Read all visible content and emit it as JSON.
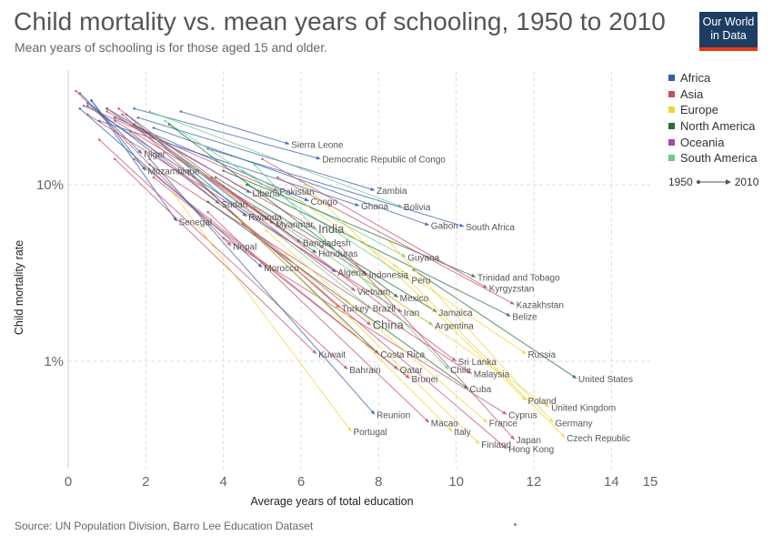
{
  "header": {
    "title": "Child mortality vs. mean years of schooling, 1950 to 2010",
    "subtitle": "Mean years of schooling is for those aged 15 and older."
  },
  "logo": {
    "line1": "Our World",
    "line2": "in Data"
  },
  "footer": {
    "source": "Source: UN Population Division, Barro Lee Education Dataset"
  },
  "legend": {
    "items": [
      {
        "label": "Africa",
        "color": "#3360a9"
      },
      {
        "label": "Asia",
        "color": "#c15065"
      },
      {
        "label": "Europe",
        "color": "#f2d33d"
      },
      {
        "label": "North America",
        "color": "#2d6b3c"
      },
      {
        "label": "Oceania",
        "color": "#a349b2"
      },
      {
        "label": "South America",
        "color": "#6bcb89"
      }
    ],
    "time_start": "1950",
    "time_end": "2010"
  },
  "chart_data": {
    "type": "scatter",
    "title": "Child mortality vs. mean years of schooling, 1950 to 2010",
    "subtitle": "Mean years of schooling is for those aged 15 and older.",
    "xlabel": "Average years of total education",
    "ylabel": "Child mortality rate",
    "xlim": [
      0,
      15
    ],
    "ylim": [
      0.3,
      40
    ],
    "y_scale": "log",
    "x_ticks": [
      "0",
      "2",
      "4",
      "6",
      "8",
      "10",
      "12",
      "14",
      "15"
    ],
    "x_tick_values": [
      0,
      2,
      4,
      6,
      8,
      10,
      12,
      14,
      15
    ],
    "y_ticks": [
      {
        "value": 10,
        "label": "10%"
      },
      {
        "value": 1,
        "label": "1%"
      }
    ],
    "grid": true,
    "legend_position": "top-right",
    "series": [
      {
        "name": "Sierra Leone",
        "region": "Africa",
        "start": [
          2.9,
          26
        ],
        "end": [
          5.7,
          17
        ]
      },
      {
        "name": "Niger",
        "region": "Africa",
        "start": [
          0.3,
          33
        ],
        "end": [
          1.9,
          15
        ]
      },
      {
        "name": "Mozambique",
        "region": "Africa",
        "start": [
          0.6,
          30
        ],
        "end": [
          2.0,
          12
        ]
      },
      {
        "name": "Democratic Republic of Congo",
        "region": "Africa",
        "start": [
          1.7,
          27
        ],
        "end": [
          6.5,
          14
        ]
      },
      {
        "name": "Zambia",
        "region": "Africa",
        "start": [
          1.8,
          24
        ],
        "end": [
          7.9,
          9.3
        ]
      },
      {
        "name": "Bolivia",
        "region": "South America",
        "start": [
          2.1,
          26
        ],
        "end": [
          8.6,
          7.5
        ]
      },
      {
        "name": "Liberia",
        "region": "Africa",
        "start": [
          1.0,
          27
        ],
        "end": [
          4.7,
          9.0
        ]
      },
      {
        "name": "Pakistan",
        "region": "Asia",
        "start": [
          0.4,
          28
        ],
        "end": [
          5.4,
          9.2
        ]
      },
      {
        "name": "Congo",
        "region": "Africa",
        "start": [
          1.2,
          24
        ],
        "end": [
          6.2,
          8.1
        ]
      },
      {
        "name": "Ghana",
        "region": "Africa",
        "start": [
          0.8,
          23
        ],
        "end": [
          7.5,
          7.6
        ]
      },
      {
        "name": "Sudan",
        "region": "Africa",
        "start": [
          0.5,
          29
        ],
        "end": [
          3.9,
          7.8
        ]
      },
      {
        "name": "Rwanda",
        "region": "Africa",
        "start": [
          1.5,
          25
        ],
        "end": [
          4.6,
          6.6
        ]
      },
      {
        "name": "Gabon",
        "region": "Africa",
        "start": [
          2.2,
          21
        ],
        "end": [
          9.3,
          5.9
        ]
      },
      {
        "name": "Myanmar",
        "region": "Asia",
        "start": [
          1.0,
          27
        ],
        "end": [
          5.3,
          6.0
        ]
      },
      {
        "name": "Senegal",
        "region": "Africa",
        "start": [
          0.6,
          30
        ],
        "end": [
          2.8,
          6.2
        ]
      },
      {
        "name": "India",
        "region": "Asia",
        "start": [
          1.0,
          26
        ],
        "end": [
          6.4,
          5.6
        ]
      },
      {
        "name": "South Africa",
        "region": "Africa",
        "start": [
          3.6,
          16
        ],
        "end": [
          10.2,
          5.8
        ]
      },
      {
        "name": "Nepal",
        "region": "Asia",
        "start": [
          0.2,
          34
        ],
        "end": [
          4.2,
          4.5
        ]
      },
      {
        "name": "Bangladesh",
        "region": "Asia",
        "start": [
          1.3,
          27
        ],
        "end": [
          6.0,
          4.7
        ]
      },
      {
        "name": "Honduras",
        "region": "North America",
        "start": [
          1.7,
          22
        ],
        "end": [
          6.4,
          4.1
        ]
      },
      {
        "name": "Guyana",
        "region": "South America",
        "start": [
          4.5,
          12
        ],
        "end": [
          8.7,
          3.9
        ]
      },
      {
        "name": "Morocco",
        "region": "Africa",
        "start": [
          0.3,
          27
        ],
        "end": [
          5.0,
          3.4
        ]
      },
      {
        "name": "Algeria",
        "region": "Africa",
        "start": [
          0.5,
          28
        ],
        "end": [
          6.9,
          3.2
        ]
      },
      {
        "name": "Indonesia",
        "region": "Asia",
        "start": [
          1.2,
          23
        ],
        "end": [
          7.7,
          3.1
        ]
      },
      {
        "name": "Trinidad and Tobago",
        "region": "North America",
        "start": [
          4.0,
          12
        ],
        "end": [
          10.5,
          3.0
        ]
      },
      {
        "name": "Peru",
        "region": "South America",
        "start": [
          2.5,
          23
        ],
        "end": [
          8.8,
          2.9
        ]
      },
      {
        "name": "Kyrgyzstan",
        "region": "Asia",
        "start": [
          5.0,
          14
        ],
        "end": [
          10.8,
          2.6
        ]
      },
      {
        "name": "Vietnam",
        "region": "Asia",
        "start": [
          2.0,
          20
        ],
        "end": [
          7.4,
          2.5
        ]
      },
      {
        "name": "Mexico",
        "region": "North America",
        "start": [
          2.6,
          22
        ],
        "end": [
          8.5,
          2.3
        ]
      },
      {
        "name": "Kazakhstan",
        "region": "Asia",
        "start": [
          5.4,
          11
        ],
        "end": [
          11.5,
          2.1
        ]
      },
      {
        "name": "Turkey",
        "region": "Asia",
        "start": [
          1.4,
          25
        ],
        "end": [
          7.0,
          2.0
        ]
      },
      {
        "name": "Brazil",
        "region": "South America",
        "start": [
          2.3,
          18
        ],
        "end": [
          7.8,
          2.0
        ]
      },
      {
        "name": "Iran",
        "region": "Asia",
        "start": [
          0.5,
          25
        ],
        "end": [
          8.6,
          1.9
        ]
      },
      {
        "name": "Jamaica",
        "region": "North America",
        "start": [
          3.8,
          11
        ],
        "end": [
          9.5,
          1.9
        ]
      },
      {
        "name": "Belize",
        "region": "North America",
        "start": [
          4.6,
          10
        ],
        "end": [
          11.4,
          1.8
        ]
      },
      {
        "name": "China",
        "region": "Asia",
        "start": [
          1.6,
          20
        ],
        "end": [
          7.8,
          1.6
        ]
      },
      {
        "name": "Argentina",
        "region": "South America",
        "start": [
          4.8,
          7.5
        ],
        "end": [
          9.4,
          1.6
        ]
      },
      {
        "name": "Kuwait",
        "region": "Asia",
        "start": [
          1.2,
          14
        ],
        "end": [
          6.4,
          1.1
        ]
      },
      {
        "name": "Costa Rica",
        "region": "North America",
        "start": [
          3.1,
          12
        ],
        "end": [
          8.0,
          1.1
        ]
      },
      {
        "name": "Russia",
        "region": "Europe",
        "start": [
          6.0,
          8.0
        ],
        "end": [
          11.8,
          1.1
        ]
      },
      {
        "name": "Sri Lanka",
        "region": "Asia",
        "start": [
          3.7,
          11
        ],
        "end": [
          10.0,
          1.0
        ]
      },
      {
        "name": "Bahrain",
        "region": "Asia",
        "start": [
          0.8,
          18
        ],
        "end": [
          7.2,
          0.9
        ]
      },
      {
        "name": "Chile",
        "region": "South America",
        "start": [
          4.8,
          13
        ],
        "end": [
          9.8,
          0.9
        ]
      },
      {
        "name": "Qatar",
        "region": "Asia",
        "start": [
          1.7,
          14
        ],
        "end": [
          8.5,
          0.9
        ]
      },
      {
        "name": "Malaysia",
        "region": "Asia",
        "start": [
          2.1,
          13
        ],
        "end": [
          10.4,
          0.85
        ]
      },
      {
        "name": "United States",
        "region": "North America",
        "start": [
          8.9,
          3.3
        ],
        "end": [
          13.1,
          0.8
        ]
      },
      {
        "name": "Brunei",
        "region": "Asia",
        "start": [
          2.2,
          11
        ],
        "end": [
          8.8,
          0.8
        ]
      },
      {
        "name": "Cuba",
        "region": "North America",
        "start": [
          3.6,
          8.0
        ],
        "end": [
          10.3,
          0.7
        ]
      },
      {
        "name": "Poland",
        "region": "Europe",
        "start": [
          6.1,
          10
        ],
        "end": [
          11.8,
          0.6
        ]
      },
      {
        "name": "Reunion",
        "region": "Africa",
        "start": [
          2.1,
          14
        ],
        "end": [
          7.9,
          0.5
        ]
      },
      {
        "name": "United Kingdom",
        "region": "Europe",
        "start": [
          7.4,
          3.2
        ],
        "end": [
          12.4,
          0.55
        ]
      },
      {
        "name": "Cyprus",
        "region": "Asia",
        "start": [
          4.0,
          5.0
        ],
        "end": [
          11.3,
          0.5
        ]
      },
      {
        "name": "Macao",
        "region": "Asia",
        "start": [
          3.6,
          7.0
        ],
        "end": [
          9.3,
          0.45
        ]
      },
      {
        "name": "Germany",
        "region": "Europe",
        "start": [
          8.3,
          4.7
        ],
        "end": [
          12.5,
          0.45
        ]
      },
      {
        "name": "France",
        "region": "Europe",
        "start": [
          5.1,
          5.5
        ],
        "end": [
          10.8,
          0.45
        ]
      },
      {
        "name": "Portugal",
        "region": "Europe",
        "start": [
          2.7,
          9.0
        ],
        "end": [
          7.3,
          0.4
        ]
      },
      {
        "name": "Italy",
        "region": "Europe",
        "start": [
          4.4,
          6.5
        ],
        "end": [
          9.9,
          0.4
        ]
      },
      {
        "name": "Czech Republic",
        "region": "Europe",
        "start": [
          8.4,
          3.5
        ],
        "end": [
          12.8,
          0.37
        ]
      },
      {
        "name": "Japan",
        "region": "Asia",
        "start": [
          7.0,
          4.5
        ],
        "end": [
          11.5,
          0.36
        ]
      },
      {
        "name": "Finland",
        "region": "Europe",
        "start": [
          5.6,
          4.0
        ],
        "end": [
          10.6,
          0.34
        ]
      },
      {
        "name": "Hong Kong",
        "region": "Asia",
        "start": [
          4.5,
          6.0
        ],
        "end": [
          11.3,
          0.32
        ]
      }
    ]
  }
}
